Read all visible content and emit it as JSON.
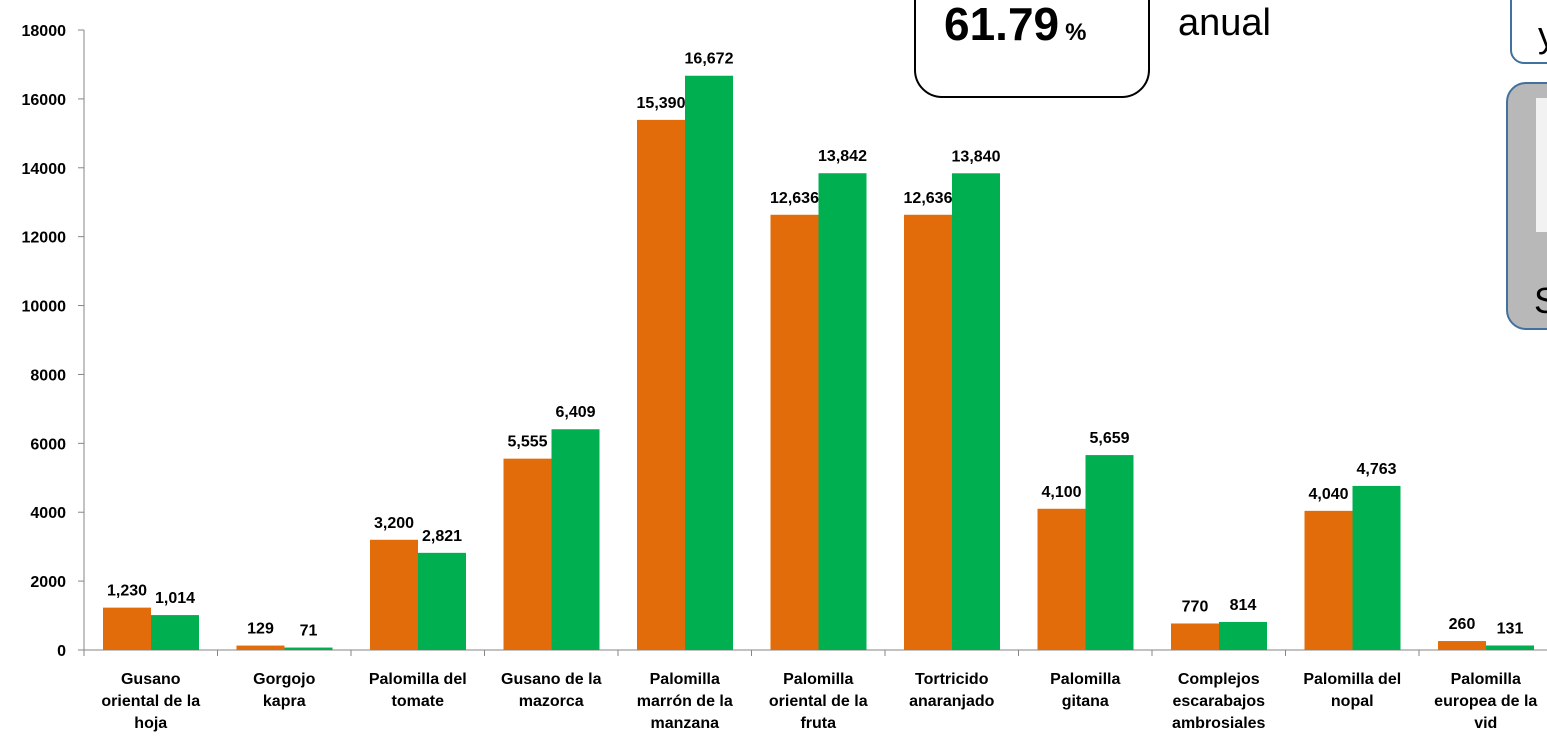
{
  "chart_data": {
    "type": "bar",
    "categories": [
      [
        "Gusano",
        "oriental de la",
        "hoja"
      ],
      [
        "Gorgojo",
        "kapra"
      ],
      [
        "Palomilla del",
        "tomate"
      ],
      [
        "Gusano de la",
        "mazorca"
      ],
      [
        "Palomilla",
        "marrón de la",
        "manzana"
      ],
      [
        "Palomilla",
        "oriental de la",
        "fruta"
      ],
      [
        "Tortricido",
        "anaranjado"
      ],
      [
        "Palomilla",
        "gitana"
      ],
      [
        "Complejos",
        "escarabajos",
        "ambrosiales"
      ],
      [
        "Palomilla del",
        "nopal"
      ],
      [
        "Palomilla",
        "europea de la",
        "vid"
      ]
    ],
    "series": [
      {
        "color": "#e36c0a",
        "values": [
          1230,
          129,
          3200,
          5555,
          15390,
          12636,
          12636,
          4100,
          770,
          4040,
          260
        ],
        "labels": [
          "1,230",
          "129",
          "3,200",
          "5,555",
          "15,390",
          "12,636",
          "12,636",
          "4,100",
          "770",
          "4,040",
          "260"
        ]
      },
      {
        "color": "#00b050",
        "values": [
          1014,
          71,
          2821,
          6409,
          16672,
          13842,
          13840,
          5659,
          814,
          4763,
          131
        ],
        "labels": [
          "1,014",
          "71",
          "2,821",
          "6,409",
          "16,672",
          "13,842",
          "13,840",
          "5,659",
          "814",
          "4,763",
          "131"
        ]
      }
    ],
    "ylim": [
      0,
      18000
    ],
    "yticks": [
      0,
      2000,
      4000,
      6000,
      8000,
      10000,
      12000,
      14000,
      16000,
      18000
    ],
    "grid": false
  },
  "callout": {
    "value": "61.79",
    "unit": "%",
    "suffix": "anual"
  },
  "side_panels": {
    "top_text": "y",
    "bottom_text": "S"
  }
}
